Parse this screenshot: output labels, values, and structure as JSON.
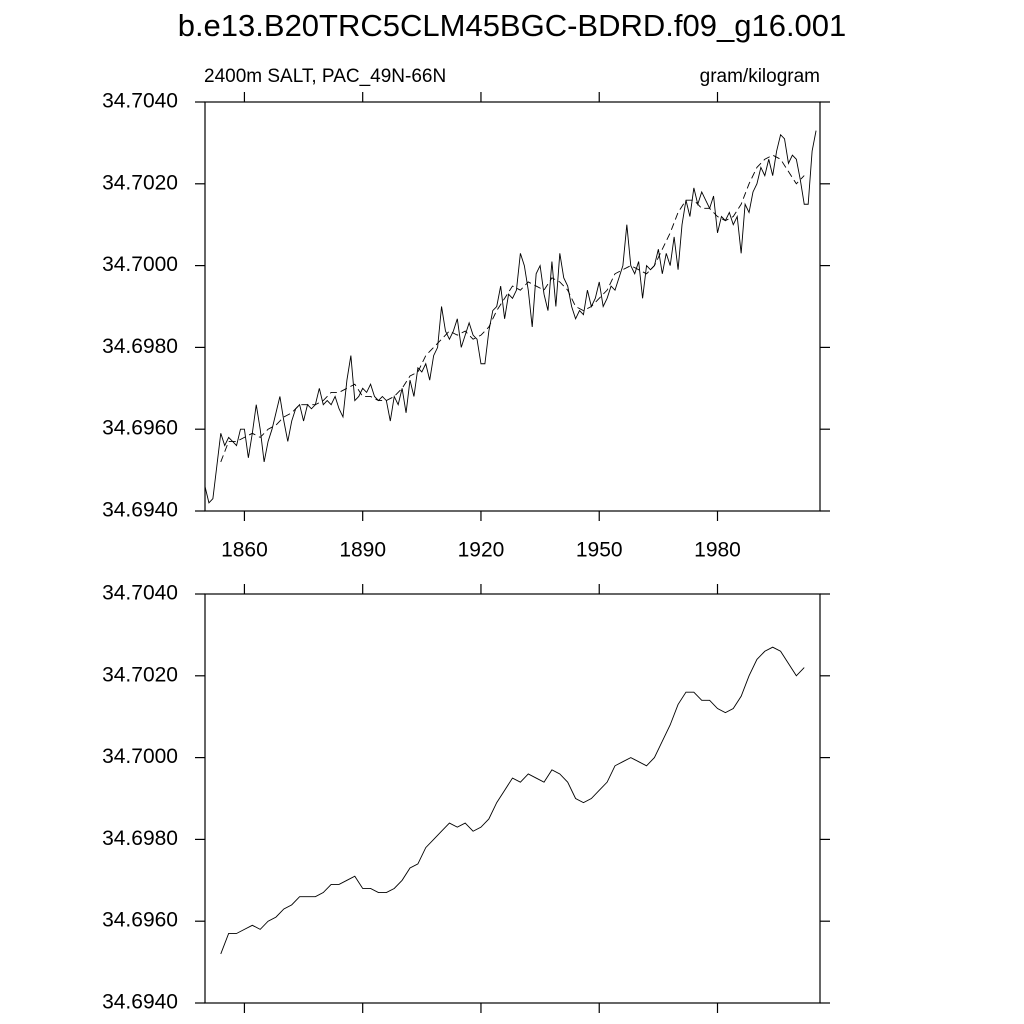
{
  "chart_data": [
    {
      "type": "line",
      "title": "b.e13.B20TRC5CLM45BGC-BDRD.f09_g16.001",
      "subtitle_left": "2400m SALT, PAC_49N-66N",
      "subtitle_right": "gram/kilogram",
      "x": [
        1850,
        1851,
        1852,
        1853,
        1854,
        1855,
        1856,
        1857,
        1858,
        1859,
        1860,
        1861,
        1862,
        1863,
        1864,
        1865,
        1866,
        1867,
        1868,
        1869,
        1870,
        1871,
        1872,
        1873,
        1874,
        1875,
        1876,
        1877,
        1878,
        1879,
        1880,
        1881,
        1882,
        1883,
        1884,
        1885,
        1886,
        1887,
        1888,
        1889,
        1890,
        1891,
        1892,
        1893,
        1894,
        1895,
        1896,
        1897,
        1898,
        1899,
        1900,
        1901,
        1902,
        1903,
        1904,
        1905,
        1906,
        1907,
        1908,
        1909,
        1910,
        1911,
        1912,
        1913,
        1914,
        1915,
        1916,
        1917,
        1918,
        1919,
        1920,
        1921,
        1922,
        1923,
        1924,
        1925,
        1926,
        1927,
        1928,
        1929,
        1930,
        1931,
        1932,
        1933,
        1934,
        1935,
        1936,
        1937,
        1938,
        1939,
        1940,
        1941,
        1942,
        1943,
        1944,
        1945,
        1946,
        1947,
        1948,
        1949,
        1950,
        1951,
        1952,
        1953,
        1954,
        1955,
        1956,
        1957,
        1958,
        1959,
        1960,
        1961,
        1962,
        1963,
        1964,
        1965,
        1966,
        1967,
        1968,
        1969,
        1970,
        1971,
        1972,
        1973,
        1974,
        1975,
        1976,
        1977,
        1978,
        1979,
        1980,
        1981,
        1982,
        1983,
        1984,
        1985,
        1986,
        1987,
        1988,
        1989,
        1990,
        1991,
        1992,
        1993,
        1994,
        1995,
        1996,
        1997,
        1998,
        1999,
        2000,
        2001,
        2002,
        2003,
        2004,
        2005
      ],
      "series": [
        {
          "color": "#000000",
          "dashed": false,
          "values": [
            34.6946,
            34.6942,
            34.6943,
            34.6951,
            34.6959,
            34.6956,
            34.6958,
            34.6957,
            34.6956,
            34.696,
            34.696,
            34.6953,
            34.6959,
            34.6966,
            34.696,
            34.6952,
            34.6957,
            34.696,
            34.6964,
            34.6968,
            34.6962,
            34.6957,
            34.6962,
            34.6965,
            34.6966,
            34.6962,
            34.6966,
            34.6965,
            34.6966,
            34.697,
            34.6966,
            34.6967,
            34.6966,
            34.6968,
            34.6965,
            34.6963,
            34.6972,
            34.6978,
            34.6967,
            34.6968,
            34.697,
            34.6969,
            34.6971,
            34.6968,
            34.6967,
            34.6968,
            34.6967,
            34.6962,
            34.6968,
            34.6966,
            34.697,
            34.6964,
            34.6972,
            34.6968,
            34.6975,
            34.6974,
            34.6976,
            34.6972,
            34.6978,
            34.698,
            34.699,
            34.6984,
            34.6982,
            34.6984,
            34.6987,
            34.698,
            34.6983,
            34.6986,
            34.6983,
            34.6982,
            34.6976,
            34.6976,
            34.6984,
            34.6989,
            34.699,
            34.6995,
            34.6987,
            34.6993,
            34.6992,
            34.6994,
            34.7003,
            34.7,
            34.6994,
            34.6985,
            34.6998,
            34.7,
            34.6993,
            34.6989,
            34.7001,
            34.699,
            34.7003,
            34.6997,
            34.6995,
            34.699,
            34.6987,
            34.6989,
            34.6988,
            34.6994,
            34.699,
            34.6992,
            34.6996,
            34.699,
            34.6992,
            34.6995,
            34.6994,
            34.6997,
            34.7,
            34.701,
            34.7,
            34.6998,
            34.7001,
            34.6992,
            34.7,
            34.6999,
            34.7,
            34.7004,
            34.6998,
            34.7003,
            34.7,
            34.7007,
            34.6999,
            34.701,
            34.7016,
            34.7012,
            34.7019,
            34.7015,
            34.7018,
            34.7016,
            34.7014,
            34.7017,
            34.7008,
            34.7012,
            34.7011,
            34.7013,
            34.701,
            34.7012,
            34.7003,
            34.7015,
            34.7013,
            34.7018,
            34.702,
            34.7024,
            34.7022,
            34.7026,
            34.7022,
            34.7028,
            34.7032,
            34.7031,
            34.7025,
            34.7027,
            34.7026,
            34.7021,
            34.7015,
            34.7015,
            34.7028,
            34.7033
          ]
        },
        {
          "color": "#000000",
          "dashed": true,
          "x": [
            1854,
            1856,
            1858,
            1860,
            1862,
            1864,
            1866,
            1868,
            1870,
            1872,
            1874,
            1876,
            1878,
            1880,
            1882,
            1884,
            1886,
            1888,
            1890,
            1892,
            1894,
            1896,
            1898,
            1900,
            1902,
            1904,
            1906,
            1908,
            1910,
            1912,
            1914,
            1916,
            1918,
            1920,
            1922,
            1924,
            1926,
            1928,
            1930,
            1932,
            1934,
            1936,
            1938,
            1940,
            1942,
            1944,
            1946,
            1948,
            1950,
            1952,
            1954,
            1956,
            1958,
            1960,
            1962,
            1964,
            1966,
            1968,
            1970,
            1972,
            1974,
            1976,
            1978,
            1980,
            1982,
            1984,
            1986,
            1988,
            1990,
            1992,
            1994,
            1996,
            1998,
            2000,
            2002
          ],
          "values": [
            34.6952,
            34.6957,
            34.6957,
            34.6958,
            34.6959,
            34.6958,
            34.696,
            34.6961,
            34.6963,
            34.6964,
            34.6966,
            34.6966,
            34.6966,
            34.6967,
            34.6969,
            34.6969,
            34.697,
            34.6971,
            34.6968,
            34.6968,
            34.6967,
            34.6967,
            34.6968,
            34.697,
            34.6973,
            34.6974,
            34.6978,
            34.698,
            34.6982,
            34.6984,
            34.6983,
            34.6984,
            34.6982,
            34.6983,
            34.6985,
            34.6989,
            34.6992,
            34.6995,
            34.6994,
            34.6996,
            34.6995,
            34.6994,
            34.6997,
            34.6996,
            34.6994,
            34.699,
            34.6989,
            34.699,
            34.6992,
            34.6994,
            34.6998,
            34.6999,
            34.7,
            34.6999,
            34.6998,
            34.7,
            34.7004,
            34.7008,
            34.7013,
            34.7016,
            34.7016,
            34.7014,
            34.7014,
            34.7012,
            34.7011,
            34.7012,
            34.7015,
            34.702,
            34.7024,
            34.7026,
            34.7027,
            34.7026,
            34.7023,
            34.702,
            34.7022
          ]
        }
      ],
      "xlim": [
        1850,
        2006
      ],
      "xticks": [
        1860,
        1890,
        1920,
        1950,
        1980
      ],
      "show_xtick_labels": true,
      "ylim": [
        34.694,
        34.704
      ],
      "yticks": [
        {
          "value": 34.694,
          "label": "34.6940"
        },
        {
          "value": 34.696,
          "label": "34.6960"
        },
        {
          "value": 34.698,
          "label": "34.6980"
        },
        {
          "value": 34.7,
          "label": "34.7000"
        },
        {
          "value": 34.702,
          "label": "34.7020"
        },
        {
          "value": 34.704,
          "label": "34.7040"
        }
      ]
    },
    {
      "type": "line",
      "x": [
        1854,
        1856,
        1858,
        1860,
        1862,
        1864,
        1866,
        1868,
        1870,
        1872,
        1874,
        1876,
        1878,
        1880,
        1882,
        1884,
        1886,
        1888,
        1890,
        1892,
        1894,
        1896,
        1898,
        1900,
        1902,
        1904,
        1906,
        1908,
        1910,
        1912,
        1914,
        1916,
        1918,
        1920,
        1922,
        1924,
        1926,
        1928,
        1930,
        1932,
        1934,
        1936,
        1938,
        1940,
        1942,
        1944,
        1946,
        1948,
        1950,
        1952,
        1954,
        1956,
        1958,
        1960,
        1962,
        1964,
        1966,
        1968,
        1970,
        1972,
        1974,
        1976,
        1978,
        1980,
        1982,
        1984,
        1986,
        1988,
        1990,
        1992,
        1994,
        1996,
        1998,
        2000,
        2002
      ],
      "series": [
        {
          "color": "#000000",
          "dashed": false,
          "values": [
            34.6952,
            34.6957,
            34.6957,
            34.6958,
            34.6959,
            34.6958,
            34.696,
            34.6961,
            34.6963,
            34.6964,
            34.6966,
            34.6966,
            34.6966,
            34.6967,
            34.6969,
            34.6969,
            34.697,
            34.6971,
            34.6968,
            34.6968,
            34.6967,
            34.6967,
            34.6968,
            34.697,
            34.6973,
            34.6974,
            34.6978,
            34.698,
            34.6982,
            34.6984,
            34.6983,
            34.6984,
            34.6982,
            34.6983,
            34.6985,
            34.6989,
            34.6992,
            34.6995,
            34.6994,
            34.6996,
            34.6995,
            34.6994,
            34.6997,
            34.6996,
            34.6994,
            34.699,
            34.6989,
            34.699,
            34.6992,
            34.6994,
            34.6998,
            34.6999,
            34.7,
            34.6999,
            34.6998,
            34.7,
            34.7004,
            34.7008,
            34.7013,
            34.7016,
            34.7016,
            34.7014,
            34.7014,
            34.7012,
            34.7011,
            34.7012,
            34.7015,
            34.702,
            34.7024,
            34.7026,
            34.7027,
            34.7026,
            34.7023,
            34.702,
            34.7022
          ]
        }
      ],
      "xlim": [
        1850,
        2006
      ],
      "xticks": [
        1860,
        1890,
        1920,
        1950,
        1980
      ],
      "show_xtick_labels": false,
      "ylim": [
        34.694,
        34.704
      ],
      "yticks": [
        {
          "value": 34.694,
          "label": "34.6940"
        },
        {
          "value": 34.696,
          "label": "34.6960"
        },
        {
          "value": 34.698,
          "label": "34.6980"
        },
        {
          "value": 34.7,
          "label": "34.7000"
        },
        {
          "value": 34.702,
          "label": "34.7020"
        },
        {
          "value": 34.704,
          "label": "34.7040"
        }
      ]
    }
  ]
}
